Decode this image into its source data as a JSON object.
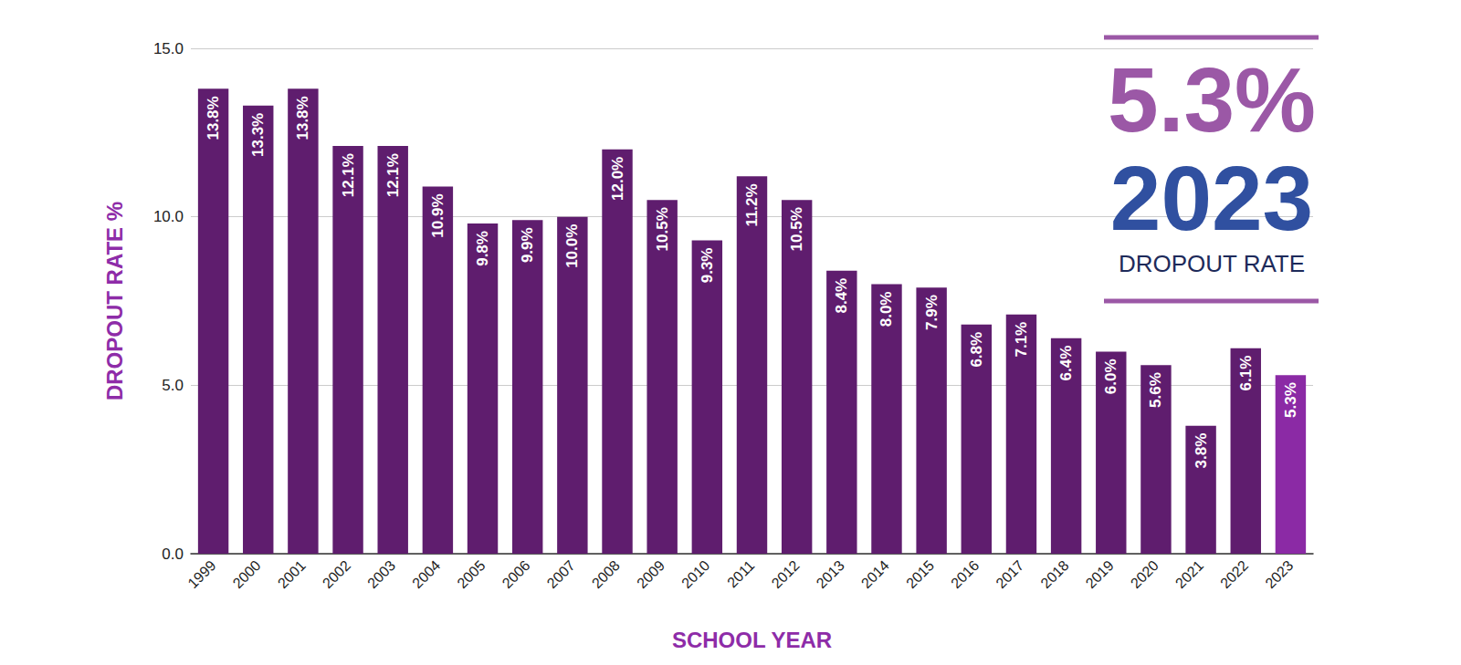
{
  "chart_data": {
    "type": "bar",
    "xlabel": "SCHOOL YEAR",
    "ylabel": "DROPOUT RATE %",
    "categories": [
      "1999",
      "2000",
      "2001",
      "2002",
      "2003",
      "2004",
      "2005",
      "2006",
      "2007",
      "2008",
      "2009",
      "2010",
      "2011",
      "2012",
      "2013",
      "2014",
      "2015",
      "2016",
      "2017",
      "2018",
      "2019",
      "2020",
      "2021",
      "2022",
      "2023"
    ],
    "values": [
      13.8,
      13.3,
      13.8,
      12.1,
      12.1,
      10.9,
      9.8,
      9.9,
      10.0,
      12.0,
      10.5,
      9.3,
      11.2,
      10.5,
      8.4,
      8.0,
      7.9,
      6.8,
      7.1,
      6.4,
      6.0,
      5.6,
      3.8,
      6.1,
      5.3
    ],
    "value_labels": [
      "13.8%",
      "13.3%",
      "13.8%",
      "12.1%",
      "12.1%",
      "10.9%",
      "9.8%",
      "9.9%",
      "10.0%",
      "12.0%",
      "10.5%",
      "9.3%",
      "11.2%",
      "10.5%",
      "8.4%",
      "8.0%",
      "7.9%",
      "6.8%",
      "7.1%",
      "6.4%",
      "6.0%",
      "5.6%",
      "3.8%",
      "6.1%",
      "5.3%"
    ],
    "colors": [
      "#5f1d6e",
      "#5f1d6e",
      "#5f1d6e",
      "#5f1d6e",
      "#5f1d6e",
      "#5f1d6e",
      "#5f1d6e",
      "#5f1d6e",
      "#5f1d6e",
      "#5f1d6e",
      "#5f1d6e",
      "#5f1d6e",
      "#5f1d6e",
      "#5f1d6e",
      "#5f1d6e",
      "#5f1d6e",
      "#5f1d6e",
      "#5f1d6e",
      "#5f1d6e",
      "#5f1d6e",
      "#5f1d6e",
      "#5f1d6e",
      "#5f1d6e",
      "#5f1d6e",
      "#8b2aa5"
    ],
    "ylim": [
      0,
      15
    ],
    "yticks": [
      {
        "value": 0,
        "label": "0.0"
      },
      {
        "value": 5,
        "label": "5.0"
      },
      {
        "value": 10,
        "label": "10.0"
      },
      {
        "value": 15,
        "label": "15.0"
      }
    ],
    "grid": true,
    "data_labels": true,
    "annotations": [
      {
        "text": "5.3%",
        "color": "#9b58a6"
      },
      {
        "text": "2023",
        "color": "#3050a0"
      },
      {
        "text": "DROPOUT RATE",
        "color": "#1d2a5a"
      }
    ]
  }
}
